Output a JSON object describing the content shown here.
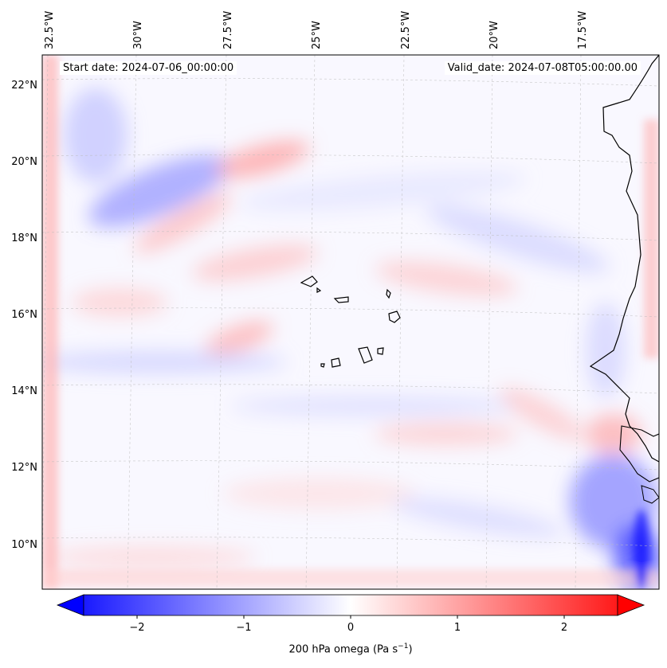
{
  "header": {
    "start_date": "Start date: 2024-07-06_00:00:00",
    "valid_date": "Valid_date: 2024-07-08T05:00:00.00"
  },
  "map": {
    "longitude_labels": [
      "32.5°W",
      "30°W",
      "27.5°W",
      "25°W",
      "22.5°W",
      "20°W",
      "17.5°W"
    ],
    "latitude_labels": [
      "22°N",
      "20°N",
      "18°N",
      "16°N",
      "14°N",
      "12°N",
      "10°N"
    ],
    "field": "200 hPa omega",
    "colormap": "bwr",
    "colors": {
      "negative": "#0000ff",
      "zero": "#ffffff",
      "positive": "#ff0000",
      "coast": "#000000",
      "grid": "#bbbbbb"
    }
  },
  "colorbar": {
    "ticks": [
      "−2",
      "−1",
      "0",
      "1",
      "2"
    ],
    "tick_values": [
      -2,
      -1,
      0,
      1,
      2
    ],
    "range": [
      -2.5,
      2.5
    ],
    "extend": "both",
    "label_text": "200 hPa omega (Pa s",
    "label_sup": "−1",
    "label_close": ")"
  }
}
